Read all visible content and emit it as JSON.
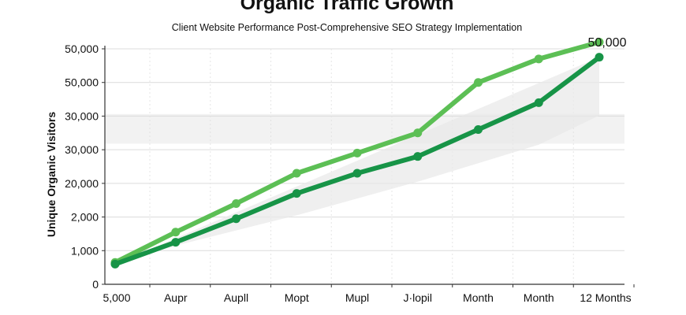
{
  "chart_data": {
    "type": "line",
    "title": "Organic Traffic Growth",
    "subtitle": "Client Website Performance Post-Comprehensive SEO Strategy Implementation",
    "xlabel": "",
    "ylabel": "Unique Organic Visitors",
    "categories": [
      "5,000",
      "Aupr",
      "Aupll",
      "Mopt",
      "Mupl",
      "J·lopil",
      "Month",
      "Month",
      "12 Months"
    ],
    "y_tick_labels": [
      "0",
      "1,000",
      "2,000",
      "20,000",
      "30,000",
      "30,000",
      "50,000",
      "50,000"
    ],
    "series": [
      {
        "name": "",
        "color": "#5cbf55",
        "values": [
          0.65,
          1.55,
          2.4,
          3.3,
          3.9,
          4.5,
          6.0,
          6.7,
          7.2
        ]
      },
      {
        "name": "",
        "color": "#179447",
        "values": [
          0.6,
          1.25,
          1.95,
          2.7,
          3.3,
          3.8,
          4.6,
          5.4,
          6.75
        ]
      }
    ],
    "annotations": [
      {
        "text": "50,000"
      }
    ],
    "grid": true,
    "legend": "none"
  }
}
